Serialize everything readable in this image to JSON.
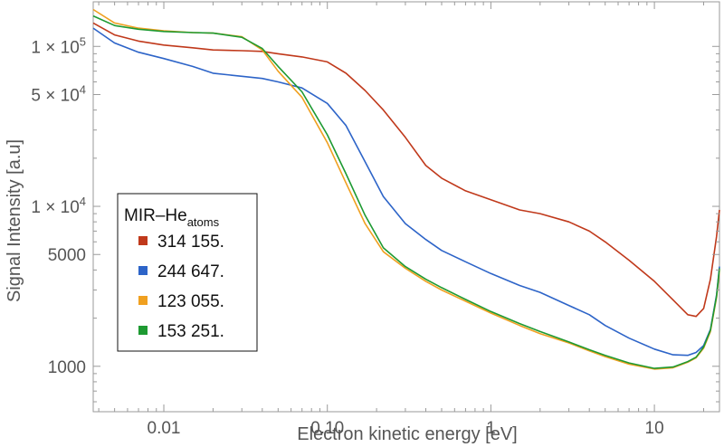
{
  "chart_data": {
    "type": "line",
    "xlabel": "Electron kinetic energy [eV]",
    "ylabel": "Signal Intensity [a.u]",
    "xscale": "log",
    "yscale": "log",
    "xlim": [
      0.0037,
      25
    ],
    "ylim": [
      520,
      190000
    ],
    "grid": false,
    "x_ticks": [
      {
        "value": 0.01,
        "label": "0.01"
      },
      {
        "value": 0.1,
        "label": "0.10"
      },
      {
        "value": 1,
        "label": "1"
      },
      {
        "value": 10,
        "label": "10"
      }
    ],
    "y_ticks": [
      {
        "value": 1000,
        "label": "1000"
      },
      {
        "value": 5000,
        "label": "5000"
      },
      {
        "value": 10000,
        "label_base": "1 × 10",
        "label_exp": "4"
      },
      {
        "value": 50000,
        "label_base": "5 × 10",
        "label_exp": "4"
      },
      {
        "value": 100000,
        "label_base": "1 × 10",
        "label_exp": "5"
      }
    ],
    "legend": {
      "title_main": "MIR–He",
      "title_sub": "atoms",
      "placement": "lower-left"
    },
    "series": [
      {
        "name": "314 155.",
        "color": "#c0391b",
        "points": [
          [
            0.0037,
            140000
          ],
          [
            0.005,
            118000
          ],
          [
            0.007,
            108000
          ],
          [
            0.01,
            102000
          ],
          [
            0.015,
            98000
          ],
          [
            0.02,
            95000
          ],
          [
            0.03,
            94000
          ],
          [
            0.04,
            93000
          ],
          [
            0.05,
            90000
          ],
          [
            0.07,
            86000
          ],
          [
            0.1,
            80000
          ],
          [
            0.13,
            68000
          ],
          [
            0.17,
            53000
          ],
          [
            0.22,
            40000
          ],
          [
            0.3,
            27000
          ],
          [
            0.4,
            18000
          ],
          [
            0.5,
            15000
          ],
          [
            0.7,
            12500
          ],
          [
            1,
            11000
          ],
          [
            1.5,
            9500
          ],
          [
            2,
            9000
          ],
          [
            3,
            8000
          ],
          [
            4,
            7000
          ],
          [
            5,
            6000
          ],
          [
            7,
            4600
          ],
          [
            10,
            3400
          ],
          [
            13,
            2600
          ],
          [
            16,
            2100
          ],
          [
            18,
            2050
          ],
          [
            20,
            2300
          ],
          [
            22,
            3500
          ],
          [
            24,
            6500
          ],
          [
            25,
            9500
          ]
        ]
      },
      {
        "name": "244 647.",
        "color": "#2d64c8",
        "points": [
          [
            0.0037,
            130000
          ],
          [
            0.005,
            105000
          ],
          [
            0.007,
            92000
          ],
          [
            0.01,
            84000
          ],
          [
            0.015,
            75000
          ],
          [
            0.02,
            68000
          ],
          [
            0.03,
            65000
          ],
          [
            0.04,
            63000
          ],
          [
            0.05,
            60000
          ],
          [
            0.07,
            55000
          ],
          [
            0.1,
            44000
          ],
          [
            0.13,
            32000
          ],
          [
            0.17,
            19000
          ],
          [
            0.22,
            11500
          ],
          [
            0.3,
            7800
          ],
          [
            0.4,
            6200
          ],
          [
            0.5,
            5300
          ],
          [
            0.7,
            4500
          ],
          [
            1,
            3800
          ],
          [
            1.5,
            3200
          ],
          [
            2,
            2900
          ],
          [
            3,
            2400
          ],
          [
            4,
            2100
          ],
          [
            5,
            1800
          ],
          [
            7,
            1500
          ],
          [
            10,
            1280
          ],
          [
            13,
            1180
          ],
          [
            16,
            1170
          ],
          [
            18,
            1220
          ],
          [
            20,
            1350
          ],
          [
            22,
            1700
          ],
          [
            24,
            2800
          ],
          [
            25,
            4200
          ]
        ]
      },
      {
        "name": "123 055.",
        "color": "#f0a020",
        "points": [
          [
            0.0037,
            170000
          ],
          [
            0.005,
            140000
          ],
          [
            0.007,
            130000
          ],
          [
            0.01,
            125000
          ],
          [
            0.015,
            122000
          ],
          [
            0.02,
            121000
          ],
          [
            0.03,
            115000
          ],
          [
            0.04,
            95000
          ],
          [
            0.05,
            70000
          ],
          [
            0.07,
            48000
          ],
          [
            0.1,
            25000
          ],
          [
            0.13,
            14000
          ],
          [
            0.17,
            7800
          ],
          [
            0.22,
            5200
          ],
          [
            0.3,
            4100
          ],
          [
            0.4,
            3400
          ],
          [
            0.5,
            3000
          ],
          [
            0.7,
            2550
          ],
          [
            1,
            2150
          ],
          [
            1.5,
            1800
          ],
          [
            2,
            1600
          ],
          [
            3,
            1400
          ],
          [
            4,
            1250
          ],
          [
            5,
            1150
          ],
          [
            7,
            1030
          ],
          [
            10,
            960
          ],
          [
            13,
            980
          ],
          [
            16,
            1060
          ],
          [
            18,
            1130
          ],
          [
            20,
            1300
          ],
          [
            22,
            1650
          ],
          [
            24,
            2700
          ],
          [
            25,
            4000
          ]
        ]
      },
      {
        "name": "153 251.",
        "color": "#1e9a32",
        "points": [
          [
            0.0037,
            155000
          ],
          [
            0.005,
            135000
          ],
          [
            0.007,
            128000
          ],
          [
            0.01,
            124000
          ],
          [
            0.015,
            122000
          ],
          [
            0.02,
            121000
          ],
          [
            0.03,
            114000
          ],
          [
            0.04,
            97000
          ],
          [
            0.05,
            75000
          ],
          [
            0.07,
            52000
          ],
          [
            0.1,
            28000
          ],
          [
            0.13,
            16000
          ],
          [
            0.17,
            8800
          ],
          [
            0.22,
            5500
          ],
          [
            0.3,
            4200
          ],
          [
            0.4,
            3500
          ],
          [
            0.5,
            3100
          ],
          [
            0.7,
            2620
          ],
          [
            1,
            2200
          ],
          [
            1.5,
            1850
          ],
          [
            2,
            1650
          ],
          [
            3,
            1420
          ],
          [
            4,
            1270
          ],
          [
            5,
            1170
          ],
          [
            7,
            1050
          ],
          [
            10,
            970
          ],
          [
            13,
            990
          ],
          [
            16,
            1070
          ],
          [
            18,
            1140
          ],
          [
            20,
            1320
          ],
          [
            22,
            1680
          ],
          [
            24,
            2750
          ],
          [
            25,
            4100
          ]
        ]
      }
    ]
  }
}
